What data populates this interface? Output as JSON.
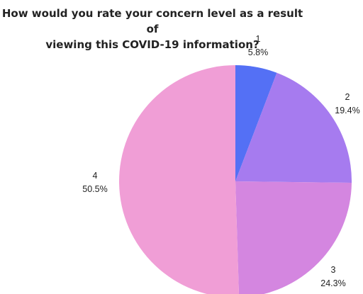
{
  "chart_data": {
    "type": "pie",
    "title": [
      "How would you rate your concern level as a result of",
      "viewing this COVID-19 information?"
    ],
    "slices": [
      {
        "label": "1",
        "value": 5.8,
        "display": "5.8%",
        "color": "#5470f5"
      },
      {
        "label": "2",
        "value": 19.4,
        "display": "19.4%",
        "color": "#a67bef"
      },
      {
        "label": "3",
        "value": 24.3,
        "display": "24.3%",
        "color": "#d486e0"
      },
      {
        "label": "4",
        "value": 50.5,
        "display": "50.5%",
        "color": "#f09ed6"
      }
    ]
  }
}
